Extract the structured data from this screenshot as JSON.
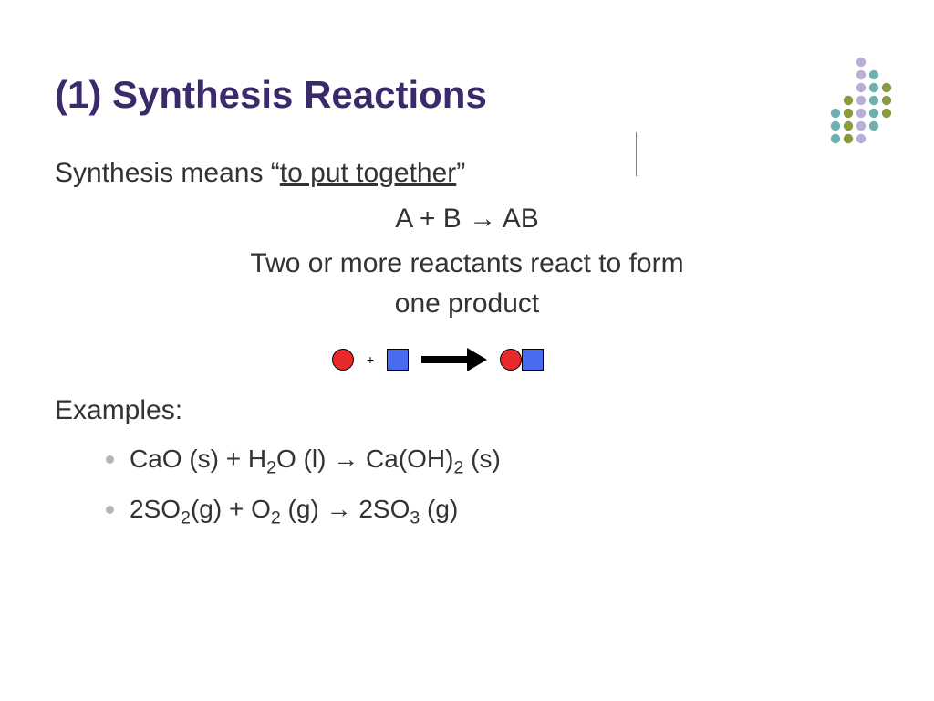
{
  "title": {
    "text": "(1) Synthesis Reactions",
    "color": "#3b2a6b",
    "fontsize": 42
  },
  "definition": {
    "prefix": "Synthesis means ",
    "quote_open": "“",
    "underlined": "to put together",
    "quote_close": "”"
  },
  "general_formula": "A + B → AB",
  "description_line1": "Two or more reactants react to form",
  "description_line2": "one product",
  "diagram": {
    "circle_color": "#e82a2a",
    "square_color": "#4a6af0",
    "plus": "+",
    "arrow_color": "#000000"
  },
  "examples_label": "Examples:",
  "examples": [
    {
      "parts": [
        "CaO (s) + H",
        "2",
        "O (l) → Ca(OH)",
        "2",
        " (s)"
      ]
    },
    {
      "parts": [
        "2SO",
        "2",
        "(g) + O",
        "2",
        " (g) → 2SO",
        "3",
        " (g)"
      ]
    }
  ],
  "decor": {
    "colors": {
      "olive": "#8a9a3f",
      "teal": "#6fb0b0",
      "lavender": "#b8aed6"
    },
    "dot_radius": 5.2,
    "row_gap": 14,
    "col_gap": 14
  },
  "text_color": "#333333",
  "background_color": "#ffffff"
}
